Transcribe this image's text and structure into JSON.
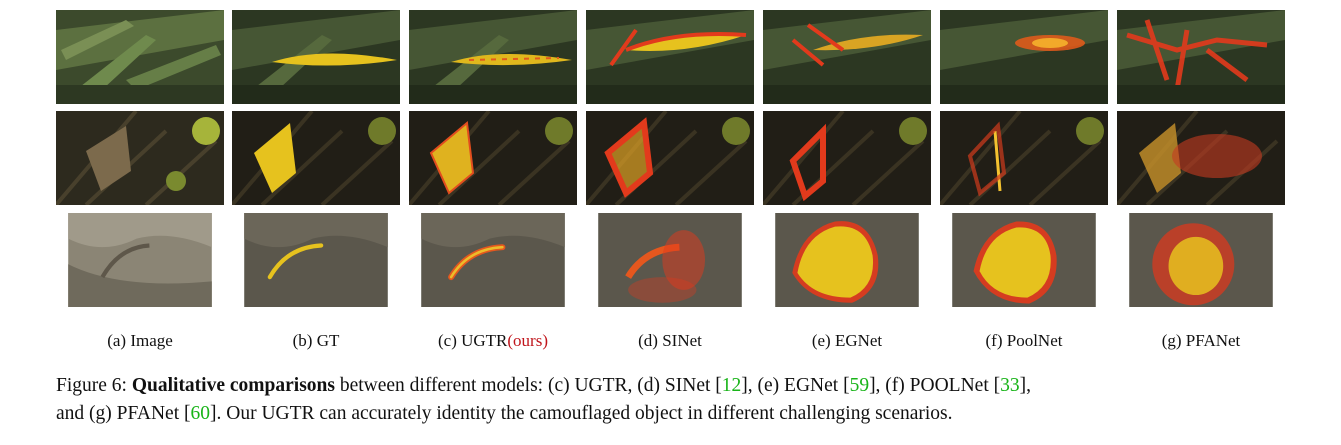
{
  "columns": [
    {
      "prefix": "(a) Image",
      "suffix": ""
    },
    {
      "prefix": "(b) GT",
      "suffix": ""
    },
    {
      "prefix": "(c) UGTR",
      "suffix": "(ours)"
    },
    {
      "prefix": "(d) SINet",
      "suffix": ""
    },
    {
      "prefix": "(e) EGNet",
      "suffix": ""
    },
    {
      "prefix": "(f) PoolNet",
      "suffix": ""
    },
    {
      "prefix": "(g) PFANet",
      "suffix": ""
    }
  ],
  "rows": [
    "leaf",
    "moth",
    "caterpillar"
  ],
  "caption": {
    "figure_label": "Figure 6: ",
    "bold": "Qualitative comparisons",
    "t1": " between different models: (c) UGTR, (d) SINet [",
    "c1": "12",
    "t2": "], (e) EGNet [",
    "c2": "59",
    "t3": "], (f) POOLNet [",
    "c3": "33",
    "t4": "],",
    "t5": "and (g) PFANet [",
    "c4": "60",
    "t6": "]. Our UGTR can accurately identity the camouflaged object in different challenging scenarios."
  },
  "colors": {
    "ours": "#c0141b",
    "citation": "#19b419",
    "mask_yellow": "#e6c21e",
    "heat_red": "#e23a1c"
  }
}
